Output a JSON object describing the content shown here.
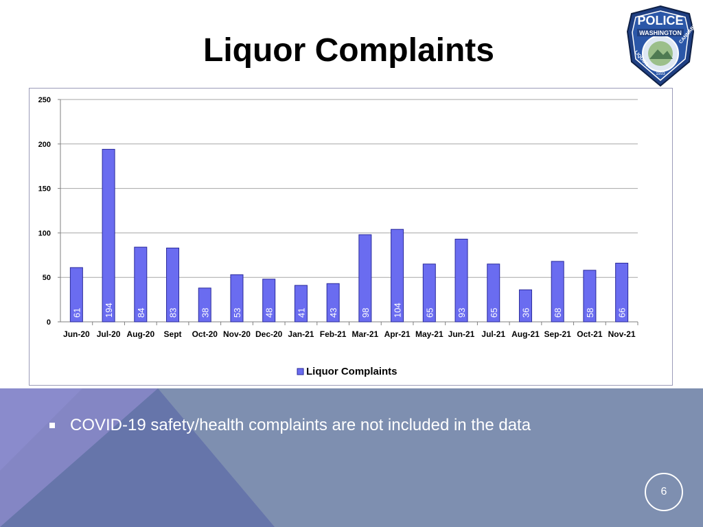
{
  "slide": {
    "title": "Liquor Complaints",
    "bullet": "COVID-19 safety/health complaints are not included in the data",
    "page_number": "6"
  },
  "badge": {
    "icon": "police-badge-icon",
    "top_text": "POLICE",
    "band_text": "WASHINGTON",
    "left_text": "LIQUOR",
    "right_text": "CANNABIS",
    "year": "1933"
  },
  "colors": {
    "bar_fill": "#6a6cf0",
    "bar_stroke": "#2a2a9a",
    "gridline": "#a6a6a6",
    "band": "#7e8fb0",
    "band_accent_1": "#8585c8",
    "band_accent_2": "#5a6ea0"
  },
  "chart_data": {
    "type": "bar",
    "categories": [
      "Jun-20",
      "Jul-20",
      "Aug-20",
      "Sept",
      "Oct-20",
      "Nov-20",
      "Dec-20",
      "Jan-21",
      "Feb-21",
      "Mar-21",
      "Apr-21",
      "May-21",
      "Jun-21",
      "Jul-21",
      "Aug-21",
      "Sep-21",
      "Oct-21",
      "Nov-21"
    ],
    "series": [
      {
        "name": "Liquor Complaints",
        "values": [
          61,
          194,
          84,
          83,
          38,
          53,
          48,
          41,
          43,
          98,
          104,
          65,
          93,
          65,
          36,
          68,
          58,
          66
        ]
      }
    ],
    "ylim": [
      0,
      250
    ],
    "yticks": [
      0,
      50,
      100,
      150,
      200,
      250
    ],
    "grid": true,
    "legend": "bottom-center",
    "data_labels": "inside-bar-vertical"
  }
}
